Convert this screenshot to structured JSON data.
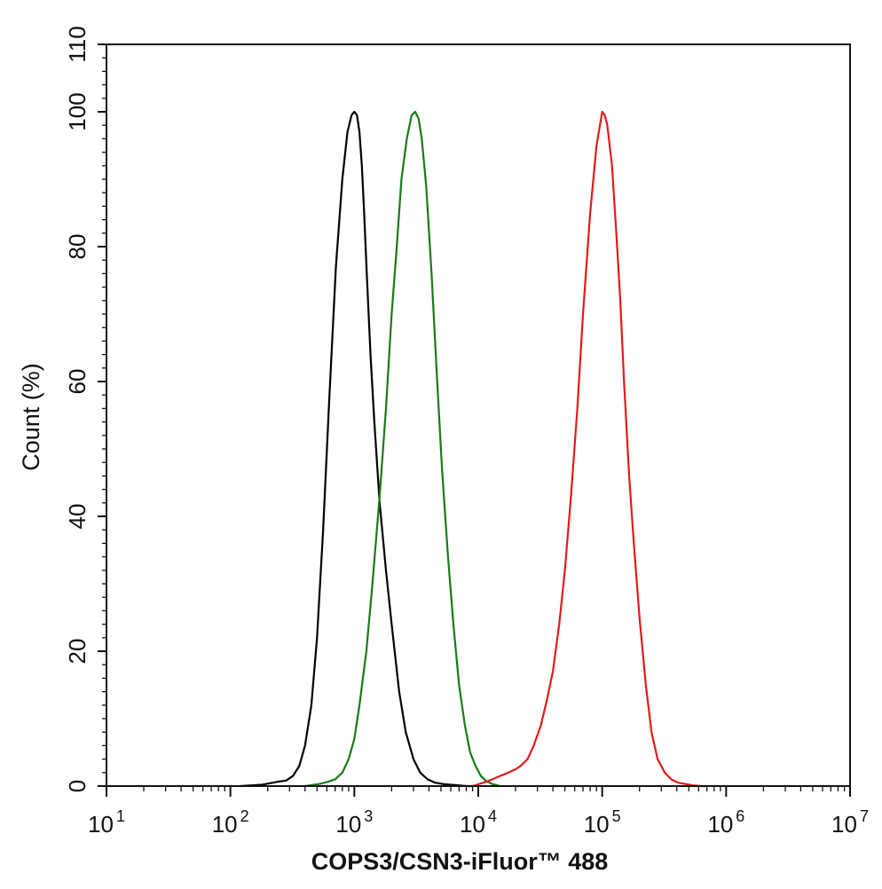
{
  "chart_data": {
    "type": "line",
    "title": "",
    "xlabel": "COPS3/CSN3-iFluor™ 488",
    "ylabel": "Count  (%)",
    "x_scale": "log",
    "xlim": [
      10,
      10000000
    ],
    "ylim": [
      0,
      110
    ],
    "x_ticks": [
      {
        "base": "10",
        "exp": "1"
      },
      {
        "base": "10",
        "exp": "2"
      },
      {
        "base": "10",
        "exp": "3"
      },
      {
        "base": "10",
        "exp": "4"
      },
      {
        "base": "10",
        "exp": "5"
      },
      {
        "base": "10",
        "exp": "6"
      },
      {
        "base": "10",
        "exp": "7"
      }
    ],
    "y_ticks": [
      "0",
      "20",
      "40",
      "60",
      "80",
      "100",
      "110"
    ],
    "y_tick_values": [
      0,
      20,
      40,
      60,
      80,
      100,
      110
    ],
    "grid": false,
    "legend": "none",
    "series": [
      {
        "color": "#000000",
        "x": [
          120,
          180,
          220,
          250,
          280,
          320,
          360,
          400,
          450,
          500,
          560,
          630,
          710,
          800,
          880,
          950,
          1000,
          1050,
          1100,
          1150,
          1200,
          1260,
          1350,
          1450,
          1600,
          1800,
          2000,
          2300,
          2600,
          3000,
          3400,
          3900,
          4500,
          5200,
          6000,
          7000,
          8000,
          9000
        ],
        "y": [
          0,
          0.2,
          0.5,
          0.7,
          0.8,
          1.5,
          3,
          6,
          12,
          22,
          38,
          58,
          77,
          90,
          97,
          99.5,
          100,
          99.5,
          97,
          92,
          85,
          76,
          64,
          54,
          42,
          32,
          24,
          14,
          8,
          4,
          2,
          1,
          0.5,
          0.3,
          0.2,
          0.1,
          0,
          0
        ]
      },
      {
        "color": "#1a7a1a",
        "x": [
          400,
          520,
          600,
          700,
          800,
          900,
          1000,
          1100,
          1250,
          1400,
          1600,
          1800,
          2000,
          2200,
          2400,
          2650,
          2900,
          3100,
          3300,
          3500,
          3800,
          4200,
          4600,
          5100,
          5700,
          6300,
          7000,
          7800,
          8600,
          9500,
          10500,
          11500,
          13000,
          15000
        ],
        "y": [
          0,
          0.3,
          0.6,
          1,
          2,
          4,
          7,
          12,
          20,
          30,
          43,
          56,
          70,
          80,
          90,
          96,
          99.5,
          100,
          99,
          96,
          89,
          76,
          62,
          47,
          34,
          24,
          15,
          9,
          5,
          3,
          1.5,
          0.8,
          0.3,
          0
        ]
      },
      {
        "color": "#e01b1b",
        "x": [
          9000,
          11000,
          13000,
          15000,
          17500,
          20000,
          22000,
          25000,
          28000,
          32000,
          36000,
          40000,
          45000,
          50000,
          56000,
          63000,
          70000,
          80000,
          90000,
          100000,
          105000,
          110000,
          120000,
          130000,
          140000,
          150000,
          165000,
          180000,
          200000,
          225000,
          250000,
          280000,
          320000,
          360000,
          410000,
          470000,
          540000,
          620000,
          700000
        ],
        "y": [
          0,
          0.5,
          1,
          1.5,
          2,
          2.5,
          3,
          4,
          6,
          9,
          13,
          17,
          24,
          32,
          43,
          56,
          70,
          85,
          95,
          100,
          99.5,
          98,
          92,
          82,
          72,
          60,
          46,
          36,
          25,
          15,
          8,
          4,
          2,
          1,
          0.5,
          0.3,
          0.1,
          0,
          0
        ]
      }
    ]
  }
}
